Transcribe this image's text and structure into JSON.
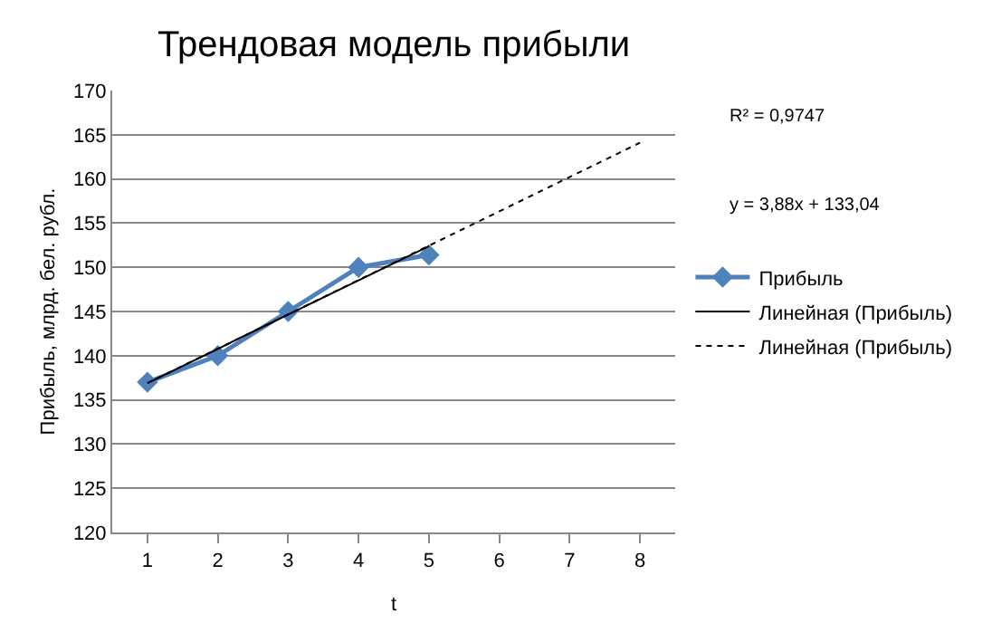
{
  "chart_data": {
    "type": "line",
    "title": "Трендовая модель прибыли",
    "xlabel": "t",
    "ylabel": "Прибыль, млрд. бел. рубл.",
    "x": [
      1,
      2,
      3,
      4,
      5
    ],
    "series": [
      {
        "name": "Прибыль",
        "color": "#4f81bd",
        "values": [
          137,
          140,
          145,
          150,
          151.4
        ],
        "marker": "diamond"
      },
      {
        "name": "Линейная (Прибыль)",
        "color": "#000000",
        "x": [
          1,
          5
        ],
        "values": [
          136.9,
          152.4
        ],
        "marker": "none",
        "line_style": "solid"
      },
      {
        "name": "Линейная (Прибыль)",
        "color": "#000000",
        "x": [
          1,
          8
        ],
        "values": [
          136.9,
          164.1
        ],
        "marker": "none",
        "line_style": "dotted"
      }
    ],
    "annotations": [
      "R² = 0,9747",
      "y = 3,88x + 133,04"
    ],
    "xlim": [
      0.5,
      8.5
    ],
    "xticks": [
      1,
      2,
      3,
      4,
      5,
      6,
      7,
      8
    ],
    "ylim": [
      120,
      170
    ],
    "yticks": [
      120,
      125,
      130,
      135,
      140,
      145,
      150,
      155,
      160,
      165,
      170
    ],
    "grid": "y",
    "legend": "right"
  }
}
